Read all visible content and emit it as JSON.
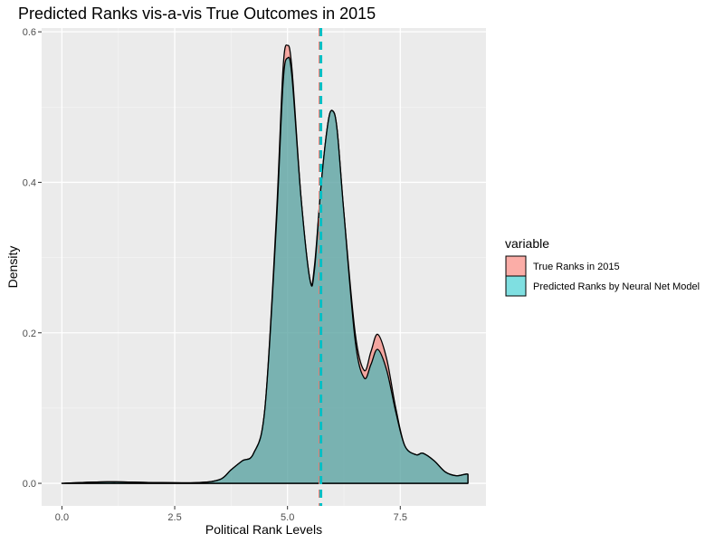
{
  "chart_data": {
    "type": "area",
    "title": "Predicted Ranks vis-a-vis True Outcomes in 2015",
    "xlabel": "Political Rank Levels",
    "ylabel": "Density",
    "xlim": [
      -0.45,
      9.4
    ],
    "ylim": [
      -0.03,
      0.605
    ],
    "x_ticks": [
      {
        "value": 0,
        "label": "0.0"
      },
      {
        "value": 2.5,
        "label": "2.5"
      },
      {
        "value": 5,
        "label": "5.0"
      },
      {
        "value": 7.5,
        "label": "7.5"
      }
    ],
    "y_ticks": [
      {
        "value": 0,
        "label": "0.0"
      },
      {
        "value": 0.2,
        "label": "0.2"
      },
      {
        "value": 0.4,
        "label": "0.4"
      },
      {
        "value": 0.6,
        "label": "0.6"
      }
    ],
    "grid": true,
    "legend": {
      "title": "variable",
      "position": "right",
      "entries": [
        {
          "label": "True Ranks in 2015",
          "color": "#F8766D"
        },
        {
          "label": "Predicted Ranks by Neural Net Model",
          "color": "#00BFC4"
        }
      ]
    },
    "series": [
      {
        "name": "True Ranks in 2015",
        "color": "#F8766D",
        "mean": 5.72,
        "points": [
          [
            0,
            0
          ],
          [
            1,
            0.002
          ],
          [
            2,
            0.001
          ],
          [
            3,
            0.001
          ],
          [
            3.5,
            0.005
          ],
          [
            3.75,
            0.018
          ],
          [
            4,
            0.03
          ],
          [
            4.25,
            0.04
          ],
          [
            4.5,
            0.1
          ],
          [
            4.75,
            0.35
          ],
          [
            4.9,
            0.55
          ],
          [
            5,
            0.582
          ],
          [
            5.1,
            0.55
          ],
          [
            5.3,
            0.38
          ],
          [
            5.5,
            0.27
          ],
          [
            5.6,
            0.29
          ],
          [
            5.75,
            0.4
          ],
          [
            5.9,
            0.48
          ],
          [
            6,
            0.495
          ],
          [
            6.1,
            0.47
          ],
          [
            6.25,
            0.36
          ],
          [
            6.5,
            0.2
          ],
          [
            6.7,
            0.15
          ],
          [
            6.85,
            0.175
          ],
          [
            7,
            0.198
          ],
          [
            7.2,
            0.165
          ],
          [
            7.4,
            0.1
          ],
          [
            7.6,
            0.05
          ],
          [
            7.85,
            0.038
          ],
          [
            8,
            0.04
          ],
          [
            8.25,
            0.03
          ],
          [
            8.5,
            0.015
          ],
          [
            8.75,
            0.01
          ],
          [
            9,
            0.012
          ],
          [
            9,
            0
          ]
        ]
      },
      {
        "name": "Predicted Ranks by Neural Net Model",
        "color": "#00BFC4",
        "mean": 5.74,
        "points": [
          [
            0,
            0
          ],
          [
            1,
            0.002
          ],
          [
            2,
            0.001
          ],
          [
            3,
            0.001
          ],
          [
            3.5,
            0.005
          ],
          [
            3.75,
            0.018
          ],
          [
            4,
            0.03
          ],
          [
            4.25,
            0.04
          ],
          [
            4.5,
            0.1
          ],
          [
            4.75,
            0.34
          ],
          [
            4.9,
            0.53
          ],
          [
            5,
            0.565
          ],
          [
            5.1,
            0.54
          ],
          [
            5.3,
            0.38
          ],
          [
            5.5,
            0.27
          ],
          [
            5.6,
            0.285
          ],
          [
            5.75,
            0.4
          ],
          [
            5.9,
            0.48
          ],
          [
            6,
            0.495
          ],
          [
            6.1,
            0.47
          ],
          [
            6.25,
            0.36
          ],
          [
            6.5,
            0.19
          ],
          [
            6.7,
            0.14
          ],
          [
            6.85,
            0.158
          ],
          [
            7,
            0.178
          ],
          [
            7.2,
            0.15
          ],
          [
            7.4,
            0.095
          ],
          [
            7.6,
            0.05
          ],
          [
            7.85,
            0.038
          ],
          [
            8,
            0.04
          ],
          [
            8.25,
            0.03
          ],
          [
            8.5,
            0.015
          ],
          [
            8.75,
            0.01
          ],
          [
            9,
            0.012
          ],
          [
            9,
            0
          ]
        ]
      }
    ]
  }
}
